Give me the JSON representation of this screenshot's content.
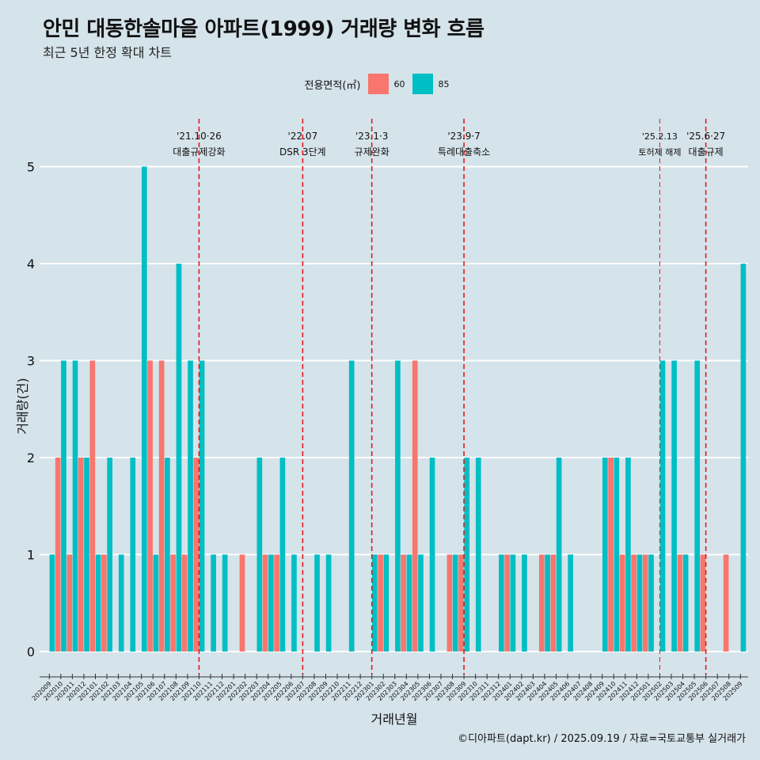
{
  "header": {
    "title": "안민 대동한솔마을 아파트(1999) 거래량 변화 흐름",
    "subtitle": "최근 5년 한정 확대 차트"
  },
  "legend": {
    "title": "전용면적(㎡)",
    "items": [
      {
        "label": "60",
        "color": "#f8766d"
      },
      {
        "label": "85",
        "color": "#00bfc4"
      }
    ]
  },
  "caption": "©디아파트(dapt.kr) / 2025.09.19 / 자료=국토교통부 실거래가",
  "chart_data": {
    "type": "bar",
    "xlabel": "거래년월",
    "ylabel": "거래량(건)",
    "ylim": [
      0,
      5
    ],
    "yticks": [
      0,
      1,
      2,
      3,
      4,
      5
    ],
    "grid": true,
    "legend_position": "top",
    "categories": [
      "202009",
      "202010",
      "202011",
      "202012",
      "202101",
      "202102",
      "202103",
      "202104",
      "202105",
      "202106",
      "202107",
      "202108",
      "202109",
      "202110",
      "202111",
      "202112",
      "202201",
      "202202",
      "202203",
      "202204",
      "202205",
      "202206",
      "202207",
      "202208",
      "202209",
      "202210",
      "202211",
      "202212",
      "202301",
      "202302",
      "202303",
      "202304",
      "202305",
      "202306",
      "202307",
      "202308",
      "202309",
      "202310",
      "202311",
      "202312",
      "202401",
      "202402",
      "202403",
      "202404",
      "202405",
      "202406",
      "202407",
      "202408",
      "202409",
      "202410",
      "202411",
      "202412",
      "202501",
      "202502",
      "202503",
      "202504",
      "202505",
      "202506",
      "202507",
      "202508",
      "202509"
    ],
    "series": [
      {
        "name": "60",
        "color": "#f8766d",
        "values": [
          0,
          2,
          1,
          2,
          3,
          1,
          0,
          0,
          0,
          3,
          3,
          1,
          1,
          2,
          0,
          0,
          0,
          1,
          0,
          1,
          1,
          0,
          0,
          0,
          0,
          0,
          0,
          0,
          0,
          1,
          0,
          1,
          3,
          0,
          0,
          1,
          1,
          0,
          0,
          0,
          1,
          0,
          0,
          1,
          1,
          0,
          0,
          0,
          0,
          2,
          1,
          1,
          1,
          0,
          0,
          1,
          0,
          1,
          0,
          1,
          0
        ]
      },
      {
        "name": "85",
        "color": "#00bfc4",
        "values": [
          1,
          3,
          3,
          2,
          1,
          2,
          1,
          2,
          5,
          1,
          2,
          4,
          3,
          3,
          1,
          1,
          0,
          0,
          2,
          1,
          2,
          1,
          0,
          1,
          1,
          0,
          3,
          0,
          1,
          1,
          3,
          1,
          1,
          2,
          0,
          1,
          2,
          2,
          0,
          1,
          1,
          1,
          0,
          1,
          2,
          1,
          0,
          0,
          2,
          2,
          2,
          1,
          1,
          3,
          3,
          1,
          3,
          0,
          0,
          0,
          4
        ]
      }
    ],
    "annotations": [
      {
        "date_label": "'21.10·26",
        "text": "대출규제강화",
        "month": "202110",
        "style": "dashed"
      },
      {
        "date_label": "'22.07",
        "text": "DSR 3단계",
        "month": "202207",
        "style": "dashed"
      },
      {
        "date_label": "'23.1·3",
        "text": "규제완화",
        "month": "202301",
        "style": "dashed"
      },
      {
        "date_label": "'23.9·7",
        "text": "특례대출축소",
        "month": "202309",
        "style": "dashed"
      },
      {
        "date_label": "'25.2.13",
        "text": "토허제 해제",
        "month": "202502",
        "style": "thin-dashed"
      },
      {
        "date_label": "'25.6·27",
        "text": "대출규제",
        "month": "202506",
        "style": "dashed"
      }
    ]
  }
}
